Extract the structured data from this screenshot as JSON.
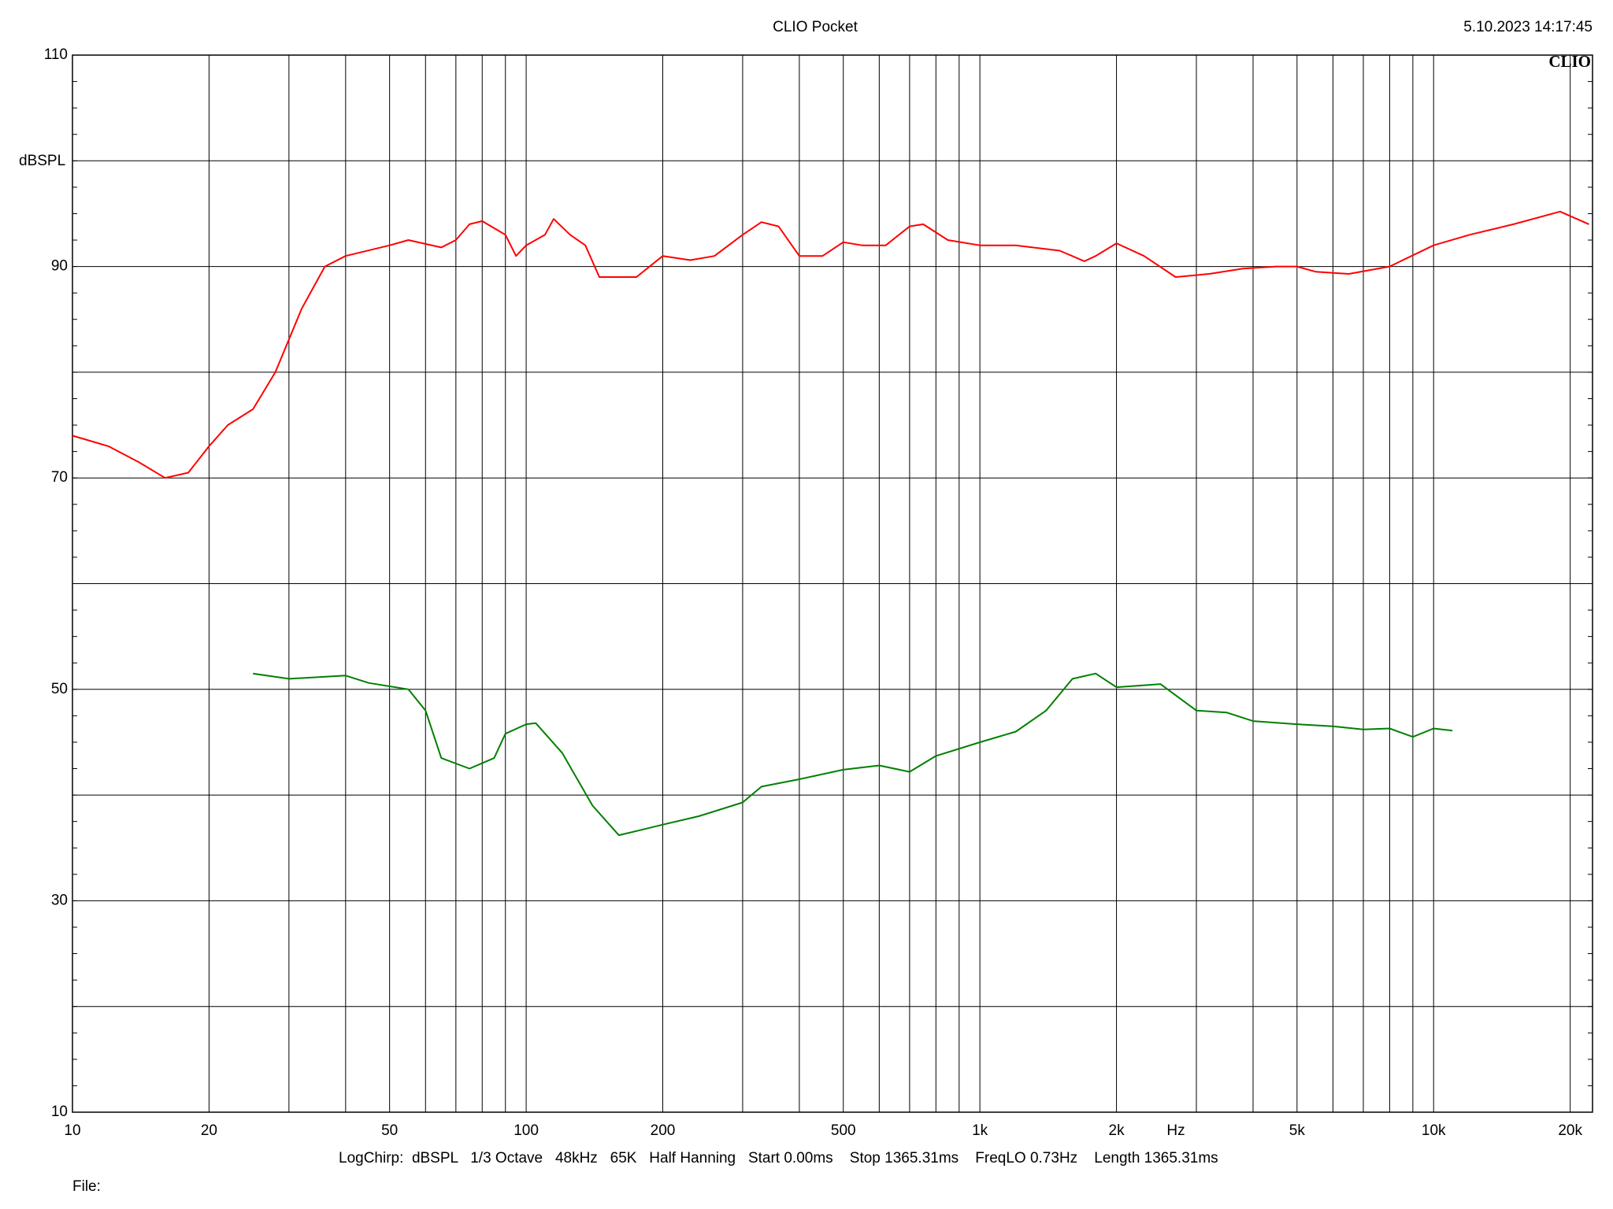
{
  "chart_data": {
    "type": "line",
    "title": "CLIO Pocket",
    "timestamp": "5.10.2023 14:17:45",
    "logo": "CLIO",
    "y_label": "dBSPL",
    "x_label": "Hz",
    "info": "LogChirp:  dBSPL   1/3 Octave   48kHz   65K   Half Hanning   Start 0.00ms    Stop 1365.31ms    FreqLO 0.73Hz    Length 1365.31ms",
    "file_label": "File:",
    "x_scale": "log",
    "grid": true,
    "xlim": [
      10,
      22400
    ],
    "ylim": [
      10,
      110
    ],
    "xticks": [
      10,
      20,
      50,
      100,
      200,
      500,
      {
        "value": 1000,
        "label": "1k"
      },
      {
        "value": 2000,
        "label": "2k"
      },
      {
        "value": 5000,
        "label": "5k"
      },
      {
        "value": 10000,
        "label": "10k"
      },
      {
        "value": 20000,
        "label": "20k"
      }
    ],
    "xminor_ticks": [
      30,
      40,
      60,
      70,
      80,
      90,
      300,
      400,
      600,
      700,
      800,
      900,
      3000,
      4000,
      6000,
      7000,
      8000,
      9000
    ],
    "yticks": [
      10,
      30,
      50,
      70,
      90,
      110
    ],
    "yminor_ticks": [
      20,
      40,
      60,
      80,
      100
    ],
    "series": [
      {
        "color": "#ff0000",
        "x": [
          10,
          12,
          14,
          16,
          18,
          20,
          22,
          25,
          28,
          32,
          36,
          40,
          50,
          55,
          65,
          70,
          75,
          80,
          90,
          95,
          100,
          110,
          115,
          125,
          135,
          145,
          160,
          175,
          200,
          230,
          260,
          300,
          330,
          360,
          400,
          450,
          500,
          550,
          620,
          700,
          750,
          850,
          1000,
          1200,
          1500,
          1700,
          1800,
          2000,
          2300,
          2700,
          3200,
          3800,
          4500,
          5000,
          5500,
          6500,
          8000,
          10000,
          12000,
          15000,
          19000,
          22000
        ],
        "values": [
          74,
          73,
          71.5,
          70,
          70.5,
          73,
          75,
          76.5,
          80,
          86,
          90,
          91,
          92,
          92.5,
          91.8,
          92.5,
          94,
          94.3,
          93,
          91,
          92,
          93,
          94.5,
          93,
          92,
          89,
          89,
          89,
          91,
          90.6,
          91,
          93,
          94.2,
          93.8,
          91,
          91,
          92.3,
          92,
          92,
          93.8,
          94,
          92.5,
          92,
          92,
          91.5,
          90.5,
          91,
          92.2,
          91,
          89,
          89.3,
          89.8,
          90,
          90,
          89.5,
          89.3,
          90,
          92,
          93,
          94,
          95.2,
          94
        ]
      },
      {
        "color": "#008000",
        "x": [
          25,
          30,
          40,
          45,
          55,
          60,
          65,
          75,
          85,
          90,
          100,
          105,
          120,
          140,
          160,
          175,
          200,
          240,
          300,
          330,
          400,
          500,
          600,
          700,
          800,
          1000,
          1200,
          1400,
          1600,
          1800,
          2000,
          2500,
          3000,
          3500,
          4000,
          5000,
          6000,
          7000,
          8000,
          9000,
          10000,
          11000
        ],
        "values": [
          51.5,
          51,
          51.3,
          50.6,
          50,
          48,
          43.5,
          42.5,
          43.5,
          45.8,
          46.7,
          46.8,
          44,
          39,
          36.2,
          36.6,
          37.2,
          38,
          39.3,
          40.8,
          41.5,
          42.4,
          42.8,
          42.2,
          43.7,
          45,
          46,
          48,
          51,
          51.5,
          50.2,
          50.5,
          48,
          47.8,
          47,
          46.7,
          46.5,
          46.2,
          46.3,
          45.5,
          46.3,
          46.1
        ]
      }
    ]
  }
}
